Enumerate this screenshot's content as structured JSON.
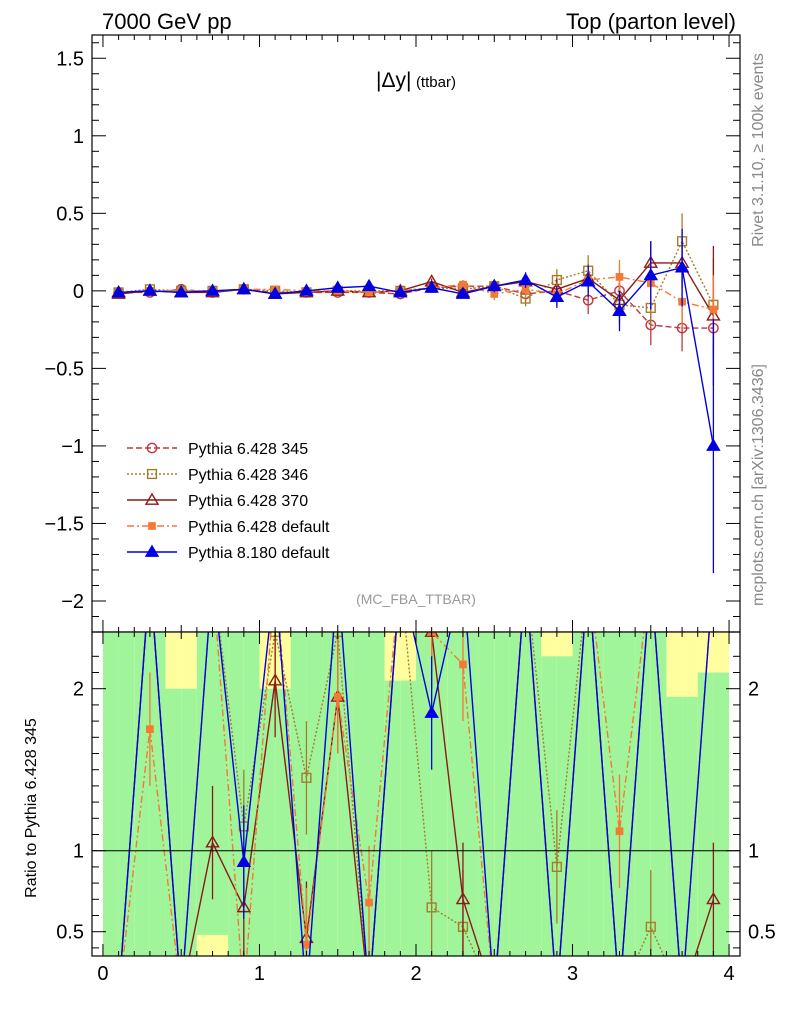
{
  "header": {
    "left": "7000 GeV pp",
    "right": "Top (parton level)"
  },
  "side_labels": {
    "rivet": "Rivet 3.1.10, ≥ 100k events",
    "mcplots": "mcplots.cern.ch [arXiv:1306.3436]"
  },
  "chart_data": [
    {
      "type": "line",
      "title": "|Δy| (ttbar)",
      "title_main": "|Δy|",
      "title_sub": "(ttbar)",
      "analysis_tag": "(MC_FBA_TTBAR)",
      "xlabel": "",
      "ylabel": "",
      "xlim": [
        -0.07,
        4.07
      ],
      "ylim": [
        -2.2,
        1.65
      ],
      "yticks": [
        1.5,
        1,
        0.5,
        0,
        -0.5,
        -1,
        -1.5,
        -2
      ],
      "ytick_labels": [
        "1.5",
        "1",
        "0.5",
        "0",
        "−0.5",
        "−1",
        "−1.5",
        "−2"
      ],
      "grid": false,
      "legend_position": "bottom-left",
      "x": [
        0.1,
        0.3,
        0.5,
        0.7,
        0.9,
        1.1,
        1.3,
        1.5,
        1.7,
        1.9,
        2.1,
        2.3,
        2.5,
        2.7,
        2.9,
        3.1,
        3.3,
        3.5,
        3.7,
        3.9
      ],
      "series": [
        {
          "name": "Pythia 6.428 345",
          "color": "#c0373f",
          "marker": "open-circle",
          "dash": "6,3",
          "values": [
            -0.01,
            -0.01,
            0.01,
            -0.01,
            0.01,
            -0.01,
            -0.01,
            -0.01,
            -0.01,
            -0.02,
            0.02,
            0.03,
            0.03,
            -0.02,
            0.0,
            -0.06,
            0.0,
            -0.22,
            -0.24,
            -0.24
          ],
          "errors": [
            0.01,
            0.01,
            0.01,
            0.01,
            0.01,
            0.01,
            0.01,
            0.01,
            0.01,
            0.02,
            0.02,
            0.03,
            0.04,
            0.05,
            0.07,
            0.09,
            0.1,
            0.13,
            0.15,
            0.2
          ]
        },
        {
          "name": "Pythia 6.428 346",
          "color": "#a67c2c",
          "marker": "open-square",
          "dash": "2,2",
          "values": [
            -0.01,
            0.01,
            0.0,
            0.0,
            0.01,
            0.0,
            -0.01,
            0.0,
            0.0,
            0.0,
            0.02,
            0.01,
            0.03,
            -0.05,
            0.07,
            0.13,
            -0.09,
            -0.11,
            0.32,
            -0.09
          ],
          "errors": [
            0.01,
            0.01,
            0.01,
            0.01,
            0.01,
            0.01,
            0.01,
            0.01,
            0.01,
            0.02,
            0.02,
            0.03,
            0.04,
            0.05,
            0.07,
            0.1,
            0.12,
            0.13,
            0.18,
            0.3
          ]
        },
        {
          "name": "Pythia 6.428 370",
          "color": "#8b1a1a",
          "marker": "open-triangle",
          "dash": "",
          "values": [
            -0.02,
            0.0,
            -0.01,
            -0.01,
            0.01,
            -0.02,
            -0.01,
            0.0,
            -0.01,
            0.0,
            0.06,
            -0.01,
            0.03,
            0.06,
            0.01,
            0.08,
            -0.06,
            0.18,
            0.18,
            -0.16
          ],
          "errors": [
            0.01,
            0.01,
            0.01,
            0.01,
            0.01,
            0.01,
            0.01,
            0.01,
            0.01,
            0.02,
            0.02,
            0.03,
            0.04,
            0.05,
            0.07,
            0.09,
            0.11,
            0.14,
            0.16,
            0.45
          ]
        },
        {
          "name": "Pythia 6.428 default",
          "color": "#f47a33",
          "marker": "filled-square",
          "dash": "7,3,2,3",
          "values": [
            -0.01,
            0.0,
            0.0,
            0.0,
            0.01,
            0.01,
            0.0,
            0.0,
            -0.01,
            0.0,
            0.02,
            0.04,
            -0.02,
            0.01,
            -0.02,
            0.07,
            0.09,
            0.05,
            -0.07,
            -0.12
          ],
          "errors": [
            0.01,
            0.01,
            0.01,
            0.01,
            0.01,
            0.01,
            0.01,
            0.01,
            0.01,
            0.02,
            0.02,
            0.03,
            0.04,
            0.05,
            0.07,
            0.09,
            0.11,
            0.13,
            0.16,
            0.22
          ]
        },
        {
          "name": "Pythia 8.180 default",
          "color": "#0000e0",
          "marker": "filled-triangle",
          "dash": "",
          "values": [
            -0.01,
            0.0,
            -0.01,
            0.0,
            0.01,
            -0.02,
            0.0,
            0.02,
            0.03,
            -0.01,
            0.02,
            -0.02,
            0.03,
            0.07,
            -0.04,
            0.06,
            -0.13,
            0.1,
            0.15,
            -1.0
          ],
          "errors": [
            0.01,
            0.01,
            0.01,
            0.01,
            0.01,
            0.01,
            0.01,
            0.01,
            0.01,
            0.02,
            0.02,
            0.03,
            0.04,
            0.05,
            0.07,
            0.1,
            0.13,
            0.22,
            0.25,
            0.82
          ]
        }
      ]
    },
    {
      "type": "line",
      "ylabel": "Ratio to Pythia 6.428 345",
      "xlabel": "",
      "xlim": [
        -0.07,
        4.07
      ],
      "ylim": [
        0.35,
        2.35
      ],
      "yticks": [
        0.5,
        1,
        2
      ],
      "ytick_labels": [
        "0.5",
        "1",
        "2"
      ],
      "xticks": [
        0,
        1,
        2,
        3,
        4
      ],
      "xtick_labels": [
        "0",
        "1",
        "2",
        "3",
        "4"
      ],
      "reference_line": 1,
      "band_1sigma_color": "#a0f59b",
      "band_2sigma_color": "#fffe9e",
      "band_edges": [
        0.0,
        0.1,
        0.2,
        0.3,
        0.4,
        0.5,
        0.6,
        0.7,
        0.8,
        0.9,
        1.0,
        1.1,
        1.2,
        1.3,
        1.4,
        1.5,
        1.6,
        1.7,
        1.8,
        1.9,
        2.0,
        2.1,
        2.2,
        2.3,
        2.4,
        2.5,
        2.6,
        2.7,
        2.8,
        2.9,
        3.0,
        3.1,
        3.2,
        3.3,
        3.4,
        3.5,
        3.6,
        3.7,
        3.8,
        3.9,
        4.0
      ],
      "band_inner_upper": [
        2.35,
        2.35,
        2.35,
        2.35,
        2.0,
        2.0,
        2.35,
        2.35,
        2.35,
        2.35,
        2.0,
        2.0,
        2.35,
        2.35,
        2.35,
        2.35,
        2.35,
        2.35,
        2.05,
        2.05,
        2.35,
        2.35,
        2.35,
        2.35,
        2.35,
        2.35,
        2.35,
        2.35,
        2.2,
        2.2,
        2.35,
        2.35,
        2.35,
        2.35,
        2.35,
        2.35,
        1.95,
        1.95,
        2.1,
        2.1
      ],
      "band_outer_upper": [
        2.35,
        2.35,
        2.35,
        2.35,
        2.35,
        2.35,
        2.35,
        2.35,
        2.35,
        2.35,
        2.35,
        2.35,
        2.35,
        2.35,
        2.35,
        2.35,
        2.35,
        2.35,
        2.35,
        2.35,
        2.35,
        2.35,
        2.35,
        2.35,
        2.35,
        2.35,
        2.35,
        2.35,
        2.35,
        2.35,
        2.35,
        2.35,
        2.35,
        2.35,
        2.35,
        2.35,
        2.35,
        2.35,
        2.35,
        2.35
      ],
      "band_inner_lower": [
        0.35,
        0.35,
        0.35,
        0.35,
        0.35,
        0.35,
        0.48,
        0.48,
        0.35,
        0.35,
        0.35,
        0.35,
        0.35,
        0.35,
        0.35,
        0.35,
        0.35,
        0.35,
        0.35,
        0.35,
        0.35,
        0.35,
        0.35,
        0.35,
        0.35,
        0.35,
        0.35,
        0.35,
        0.35,
        0.35,
        0.35,
        0.35,
        0.35,
        0.35,
        0.35,
        0.35,
        0.35,
        0.35,
        0.35,
        0.35
      ],
      "ratio_series": [
        {
          "name": "Pythia 6.428 346",
          "values": [
            null,
            null,
            null,
            null,
            1.15,
            2.35,
            1.45,
            2.35,
            null,
            null,
            0.65,
            0.53,
            null,
            null,
            0.9,
            null,
            null,
            0.53,
            null,
            null
          ]
        },
        {
          "name": "Pythia 6.428 370",
          "values": [
            null,
            null,
            null,
            1.05,
            0.65,
            2.05,
            0.46,
            1.95,
            null,
            null,
            2.35,
            0.7,
            null,
            null,
            null,
            null,
            null,
            null,
            null,
            0.7
          ]
        },
        {
          "name": "Pythia 6.428 default",
          "values": [
            null,
            1.75,
            null,
            null,
            null,
            null,
            0.42,
            1.95,
            0.68,
            null,
            2.35,
            2.15,
            null,
            null,
            null,
            null,
            1.12,
            null,
            null,
            null
          ]
        },
        {
          "name": "Pythia 8.180 default",
          "values": [
            null,
            null,
            null,
            null,
            0.93,
            null,
            null,
            null,
            null,
            null,
            1.85,
            null,
            null,
            null,
            null,
            null,
            null,
            null,
            null,
            null
          ]
        }
      ]
    }
  ]
}
